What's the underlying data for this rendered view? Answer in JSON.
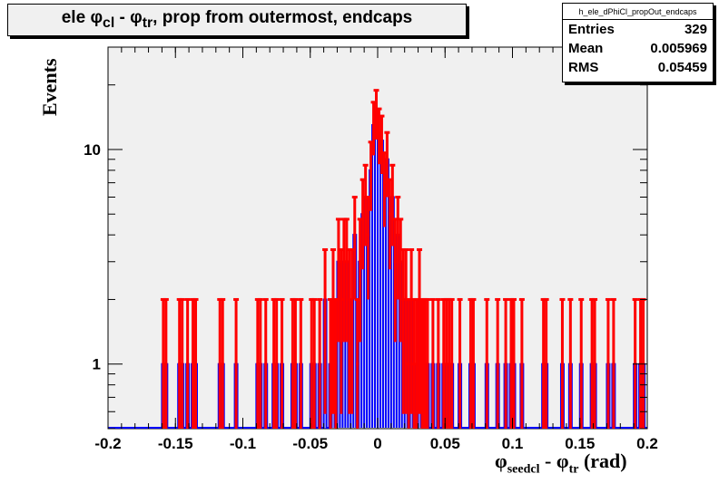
{
  "title": {
    "prefix": "ele ",
    "phi": "φ",
    "sub_cl": "cl",
    "minus": " - ",
    "sub_tr": "tr",
    "suffix": ", prop from outermost, endcaps"
  },
  "stats": {
    "name": "h_ele_dPhiCl_propOut_endcaps",
    "rows": [
      {
        "label": "Entries",
        "value": "329"
      },
      {
        "label": "Mean",
        "value": "0.005969"
      },
      {
        "label": "RMS",
        "value": "0.05459"
      }
    ]
  },
  "axes": {
    "ylabel": "Events",
    "xlabel_phi": "φ",
    "xlabel_sub1": "seedcl",
    "xlabel_mid": " - ",
    "xlabel_sub2": "tr",
    "xlabel_unit": " (rad)"
  },
  "colors": {
    "frame_bg": "#f0f0f0",
    "hist_line": "#0000ff",
    "error_bars": "#ff0000"
  },
  "chart_data": {
    "type": "bar",
    "title": "ele φcl - φtr, prop from outermost, endcaps",
    "xlabel": "φseedcl - φtr (rad)",
    "ylabel": "Events",
    "xlim": [
      -0.2,
      0.2
    ],
    "ylim": [
      0.5,
      30
    ],
    "yscale": "log",
    "xticks": [
      "-0.2",
      "-0.15",
      "-0.1",
      "-0.05",
      "0",
      "0.05",
      "0.1",
      "0.15",
      "0.2"
    ],
    "yticks": [
      "1",
      "10"
    ],
    "bin_width": 0.002,
    "grid": false,
    "x": [
      -0.159,
      -0.157,
      -0.147,
      -0.145,
      -0.141,
      -0.137,
      -0.135,
      -0.117,
      -0.115,
      -0.105,
      -0.089,
      -0.087,
      -0.083,
      -0.077,
      -0.075,
      -0.071,
      -0.063,
      -0.061,
      -0.057,
      -0.049,
      -0.047,
      -0.043,
      -0.039,
      -0.035,
      -0.033,
      -0.031,
      -0.029,
      -0.027,
      -0.025,
      -0.023,
      -0.021,
      -0.019,
      -0.017,
      -0.015,
      -0.013,
      -0.011,
      -0.009,
      -0.007,
      -0.005,
      -0.003,
      -0.001,
      0.001,
      0.003,
      0.005,
      0.007,
      0.009,
      0.011,
      0.013,
      0.015,
      0.017,
      0.019,
      0.021,
      0.023,
      0.025,
      0.027,
      0.029,
      0.031,
      0.033,
      0.035,
      0.037,
      0.041,
      0.045,
      0.049,
      0.051,
      0.053,
      0.055,
      0.061,
      0.069,
      0.071,
      0.081,
      0.089,
      0.095,
      0.099,
      0.101,
      0.107,
      0.123,
      0.125,
      0.137,
      0.143,
      0.151,
      0.159,
      0.161,
      0.171,
      0.175,
      0.191,
      0.195,
      0.197
    ],
    "values": [
      1,
      1,
      1,
      1,
      1,
      1,
      1,
      1,
      1,
      1,
      1,
      1,
      1,
      1,
      1,
      1,
      1,
      1,
      1,
      1,
      1,
      1,
      2,
      1,
      2,
      1,
      3,
      2,
      3,
      3,
      2,
      2,
      4,
      1,
      3,
      5,
      6,
      4,
      8,
      13,
      15,
      12,
      11,
      7,
      9,
      5,
      6,
      3,
      4,
      3,
      2,
      2,
      1,
      2,
      1,
      1,
      2,
      1,
      1,
      1,
      1,
      1,
      1,
      1,
      1,
      1,
      1,
      1,
      1,
      1,
      1,
      1,
      1,
      1,
      1,
      1,
      1,
      1,
      1,
      1,
      1,
      1,
      1,
      1,
      1,
      1,
      1
    ]
  }
}
